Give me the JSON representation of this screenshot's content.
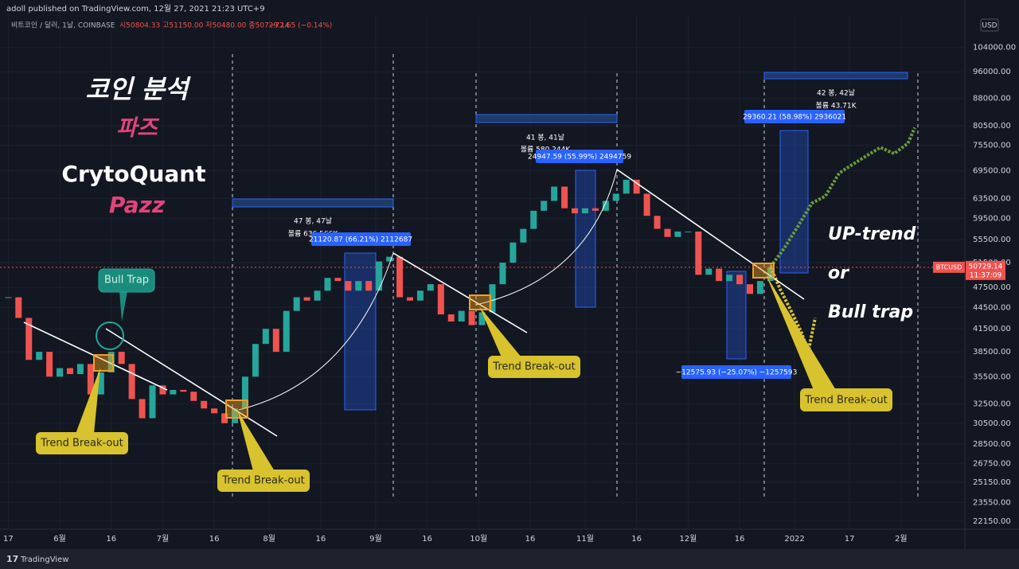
{
  "header": {
    "publisher": "adoll published on TradingView.com, 12월 27, 2021 21:23 UTC+9",
    "symbol": "비트코인 / 달러, 1날, COINBASE",
    "ohlc": "시50804.33 고51150.00 저50480.00 종50729.14",
    "change": "−72.65 (−0.14%)"
  },
  "title_block": {
    "line1": "코인 분석",
    "line2": "파즈",
    "line3": "CrytoQuant",
    "line4": "Pazz"
  },
  "annotations": {
    "bull_trap_bubble": "Bull Trap",
    "breakout_1": "Trend Break-out",
    "breakout_2": "Trend Break-out",
    "breakout_3": "Trend Break-out",
    "breakout_4": "Trend Break-out",
    "scenario_1": "UP-trend",
    "scenario_or": "or",
    "scenario_2": "Bull trap"
  },
  "measures": {
    "range_1_bars": "47 봉, 47날",
    "range_1_volume": "볼륨 636.566K",
    "move_1": "21120.87 (66.21%) 2112687",
    "range_2_bars": "41 봉, 41날",
    "range_2_volume": "볼륨 580.244K",
    "move_2": "24947.59 (55.99%) 2494759",
    "range_3_bars": "42 봉, 42날",
    "range_3_volume": "볼륨 43.71K",
    "move_3": "29360.21 (58.98%) 2936021",
    "move_4": "−12575.93 (−25.07%) −1257593"
  },
  "chart_data": {
    "type": "candlestick",
    "log_scale": true,
    "currency": "USD",
    "symbol_label": "BTCUSD",
    "last_price": 50729.14,
    "countdown": "11:37:09",
    "xlim": [
      -2.4,
      278.6
    ],
    "ylim": [
      21580,
      115800
    ],
    "xticks": [
      {
        "value": 0,
        "label": "17"
      },
      {
        "value": 15,
        "label": "6월"
      },
      {
        "value": 30,
        "label": "16"
      },
      {
        "value": 45,
        "label": "7월"
      },
      {
        "value": 60,
        "label": "16"
      },
      {
        "value": 76,
        "label": "8월"
      },
      {
        "value": 91,
        "label": "16"
      },
      {
        "value": 107,
        "label": "9월"
      },
      {
        "value": 122,
        "label": "16"
      },
      {
        "value": 137,
        "label": "10월"
      },
      {
        "value": 152,
        "label": "16"
      },
      {
        "value": 168,
        "label": "11월"
      },
      {
        "value": 183,
        "label": "16"
      },
      {
        "value": 198,
        "label": "12월"
      },
      {
        "value": 213,
        "label": "16"
      },
      {
        "value": 229,
        "label": "2022"
      },
      {
        "value": 245,
        "label": "17"
      },
      {
        "value": 260,
        "label": "2월"
      }
    ],
    "yticks": [
      {
        "value": 22150,
        "label": "22150.00"
      },
      {
        "value": 23550,
        "label": "23550.00"
      },
      {
        "value": 25150,
        "label": "25150.00"
      },
      {
        "value": 26750,
        "label": "26750.00"
      },
      {
        "value": 28500,
        "label": "28500.00"
      },
      {
        "value": 30500,
        "label": "30500.00"
      },
      {
        "value": 32500,
        "label": "32500.00"
      },
      {
        "value": 35500,
        "label": "35500.00"
      },
      {
        "value": 38500,
        "label": "38500.00"
      },
      {
        "value": 41500,
        "label": "41500.00"
      },
      {
        "value": 44500,
        "label": "44500.00"
      },
      {
        "value": 47500,
        "label": "47500.00"
      },
      {
        "value": 51500,
        "label": "51500.00"
      },
      {
        "value": 55500,
        "label": "55500.00"
      },
      {
        "value": 59500,
        "label": "59500.00"
      },
      {
        "value": 63500,
        "label": "63500.00"
      },
      {
        "value": 69500,
        "label": "69500.00"
      },
      {
        "value": 75500,
        "label": "75500.00"
      },
      {
        "value": 80500,
        "label": "80500.00"
      },
      {
        "value": 88000,
        "label": "88000.00"
      },
      {
        "value": 96000,
        "label": "96000.00"
      },
      {
        "value": 104000,
        "label": "104000.00"
      }
    ],
    "up_color": "#26a69a",
    "down_color": "#ef5350",
    "x": [
      0,
      3,
      6,
      9,
      12,
      15,
      18,
      21,
      24,
      27,
      30,
      33,
      36,
      39,
      42,
      45,
      48,
      51,
      54,
      57,
      60,
      63,
      66,
      69,
      72,
      75,
      78,
      81,
      84,
      87,
      90,
      93,
      96,
      99,
      102,
      105,
      108,
      111,
      114,
      117,
      120,
      123,
      126,
      129,
      132,
      135,
      138,
      141,
      144,
      147,
      150,
      153,
      156,
      159,
      162,
      165,
      168,
      171,
      174,
      177,
      180,
      183,
      186,
      189,
      192,
      195,
      198,
      201,
      204,
      207,
      210,
      213,
      216,
      219,
      222
    ],
    "close": [
      46000,
      43000,
      37500,
      38500,
      35500,
      36500,
      35800,
      37000,
      33500,
      36000,
      38500,
      37000,
      33000,
      31000,
      34500,
      33500,
      34000,
      33800,
      32800,
      32000,
      31500,
      30500,
      32000,
      35500,
      39500,
      41500,
      38500,
      44000,
      46000,
      45500,
      47000,
      49000,
      48500,
      47000,
      48500,
      47000,
      51700,
      52500,
      46000,
      45500,
      47000,
      48000,
      43500,
      42500,
      44000,
      42000,
      43800,
      48000,
      51500,
      55000,
      57500,
      61000,
      63000,
      66000,
      61500,
      60500,
      61500,
      61000,
      63000,
      64500,
      67500,
      64500,
      60000,
      57500,
      56000,
      57000,
      57000,
      49500,
      50500,
      48500,
      49500,
      48000,
      46500,
      48500,
      50800
    ],
    "projections": [
      {
        "color": "#6a9b3a",
        "x": [
          222,
          226,
          230,
          234,
          238,
          242,
          246,
          250,
          254,
          258,
          262,
          264
        ],
        "values": [
          50800,
          54000,
          58000,
          62500,
          64000,
          69000,
          71000,
          73000,
          75000,
          73500,
          76000,
          80000
        ]
      },
      {
        "color": "#d8c22e",
        "x": [
          222,
          225,
          228,
          231,
          233,
          235
        ],
        "values": [
          50800,
          47000,
          44000,
          41000,
          38500,
          43000
        ]
      }
    ]
  }
}
